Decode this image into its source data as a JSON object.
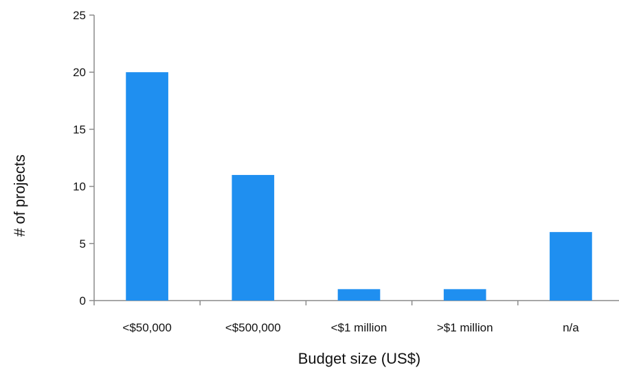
{
  "chart_data": {
    "type": "bar",
    "title": "",
    "xlabel": "Budget size (US$)",
    "ylabel": "# of projects",
    "categories": [
      "<$50,000",
      "<$500,000",
      "<$1 million",
      ">$1 million",
      "n/a"
    ],
    "values": [
      20,
      11,
      1,
      1,
      6
    ],
    "ylim": [
      0,
      25
    ],
    "yticks": [
      0,
      5,
      10,
      15,
      20,
      25
    ],
    "grid": false,
    "legend": "none",
    "bar_color": "#1f8ff0"
  }
}
